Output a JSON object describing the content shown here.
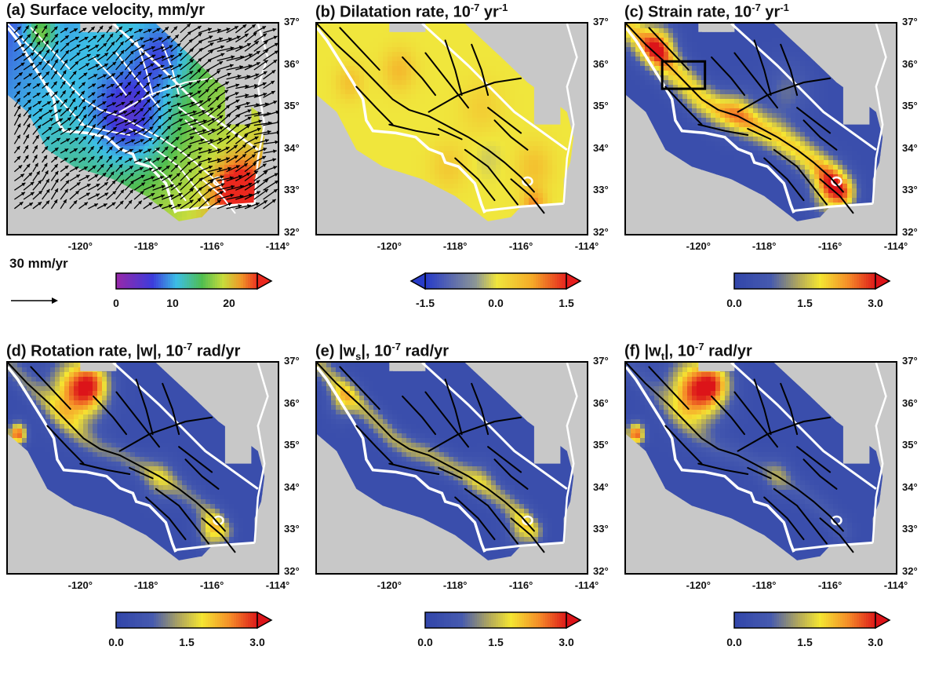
{
  "panels": [
    {
      "id": "a",
      "title_prefix": "(a)  Surface velocity, mm/yr",
      "title_sup": "",
      "title_tail": "",
      "field": "velocity",
      "vectors": true,
      "box": false,
      "lats": [
        "37°",
        "36°",
        "35°",
        "34°",
        "33°",
        "32°"
      ],
      "lons": [
        "-120°",
        "-118°",
        "-116°",
        "-114°"
      ],
      "colorbar": {
        "colormap": "rainbow",
        "ticks": [
          "0",
          "10",
          "20"
        ],
        "left_arrow": false,
        "right_arrow": true
      },
      "scale_label": "30 mm/yr"
    },
    {
      "id": "b",
      "title_prefix": "(b)  Dilatation rate, 10",
      "title_sup": "-7",
      "title_tail": " yr",
      "title_sup2": "-1",
      "field": "dilatation",
      "vectors": false,
      "box": false,
      "lats": [
        "37°",
        "36°",
        "35°",
        "34°",
        "33°",
        "32°"
      ],
      "lons": [
        "-120°",
        "-118°",
        "-116°",
        "-114°"
      ],
      "colorbar": {
        "colormap": "diverging",
        "ticks": [
          "-1.5",
          "0.0",
          "1.5"
        ],
        "left_arrow": true,
        "right_arrow": true
      }
    },
    {
      "id": "c",
      "title_prefix": "(c)  Strain rate, 10",
      "title_sup": "-7",
      "title_tail": " yr",
      "title_sup2": "-1",
      "field": "strain",
      "vectors": false,
      "box": true,
      "lats": [
        "37°",
        "36°",
        "35°",
        "34°",
        "33°",
        "32°"
      ],
      "lons": [
        "-120°",
        "-118°",
        "-116°",
        "-114°"
      ],
      "colorbar": {
        "colormap": "hot",
        "ticks": [
          "0.0",
          "1.5",
          "3.0"
        ],
        "left_arrow": false,
        "right_arrow": true
      }
    },
    {
      "id": "d",
      "title_prefix": "(d)  Rotation rate, |w|, 10",
      "title_sup": "-7",
      "title_tail": " rad/yr",
      "title_sup2": "",
      "field": "rotation",
      "vectors": false,
      "box": false,
      "lats": [
        "37°",
        "36°",
        "35°",
        "34°",
        "33°",
        "32°"
      ],
      "lons": [
        "-120°",
        "-118°",
        "-116°",
        "-114°"
      ],
      "colorbar": {
        "colormap": "hot",
        "ticks": [
          "0.0",
          "1.5",
          "3.0"
        ],
        "left_arrow": false,
        "right_arrow": true
      }
    },
    {
      "id": "e",
      "title_prefix": "(e)  |w",
      "title_sub": "s",
      "title_mid": "|, 10",
      "title_sup": "-7",
      "title_tail": " rad/yr",
      "title_sup2": "",
      "field": "ws",
      "vectors": false,
      "box": false,
      "lats": [
        "37°",
        "36°",
        "35°",
        "34°",
        "33°",
        "32°"
      ],
      "lons": [
        "-120°",
        "-118°",
        "-116°",
        "-114°"
      ],
      "colorbar": {
        "colormap": "hot",
        "ticks": [
          "0.0",
          "1.5",
          "3.0"
        ],
        "left_arrow": false,
        "right_arrow": true
      }
    },
    {
      "id": "f",
      "title_prefix": "(f)  |w",
      "title_sub": "t",
      "title_mid": "|, 10",
      "title_sup": "-7",
      "title_tail": " rad/yr",
      "title_sup2": "",
      "field": "wt",
      "vectors": false,
      "box": false,
      "lats": [
        "37°",
        "36°",
        "35°",
        "34°",
        "33°",
        "32°"
      ],
      "lons": [
        "-120°",
        "-118°",
        "-116°",
        "-114°"
      ],
      "colorbar": {
        "colormap": "hot",
        "ticks": [
          "0.0",
          "1.5",
          "3.0"
        ],
        "left_arrow": false,
        "right_arrow": true
      }
    }
  ],
  "colors": {
    "land": "#c8c8c8",
    "fault": "#000000",
    "coast": "#ffffff",
    "low": "#3a4aa8",
    "high": "#e8161e"
  }
}
